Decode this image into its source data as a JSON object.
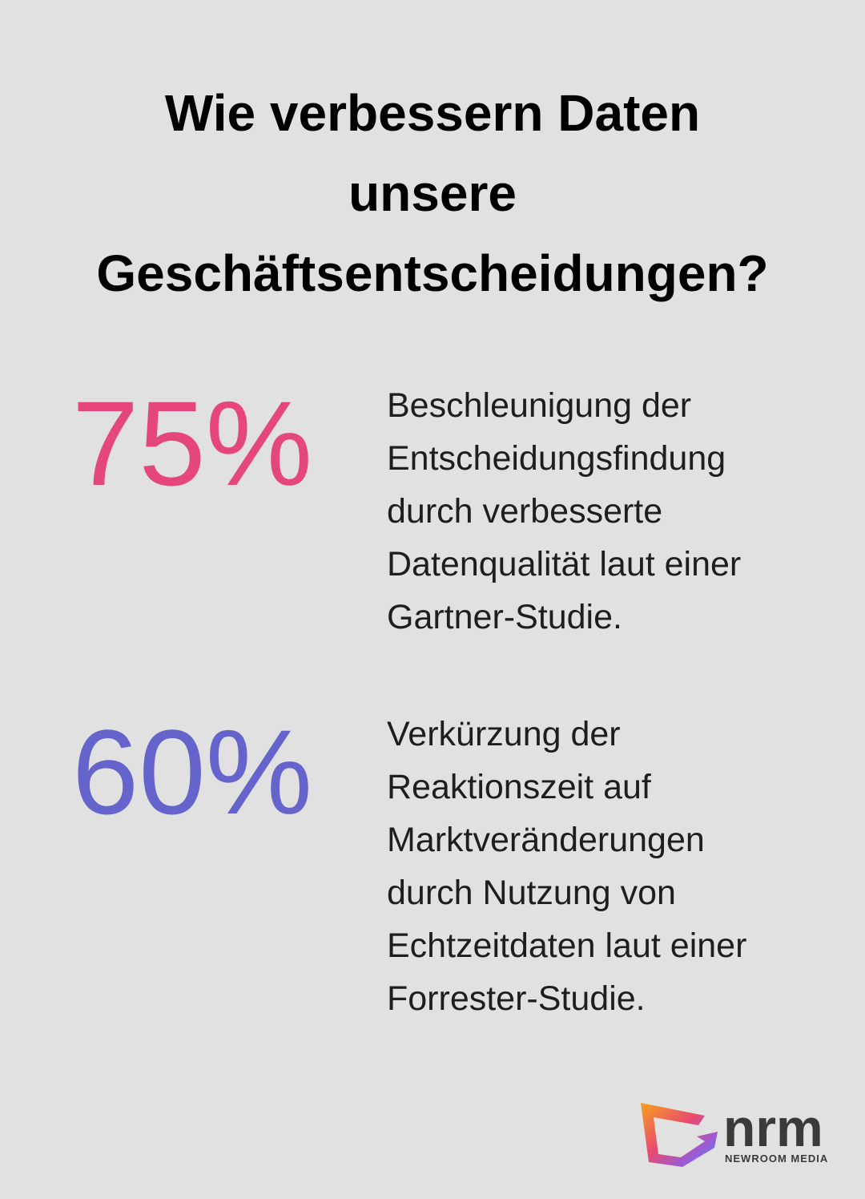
{
  "title": [
    "Wie verbessern Daten",
    "unsere",
    "Geschäftsentscheidungen?"
  ],
  "stats": [
    {
      "value": "75%",
      "color": "#e5477a",
      "description": [
        "Beschleunigung der",
        "Entscheidungsfindung",
        "durch verbesserte",
        "Datenqualität laut einer",
        "Gartner-Studie."
      ]
    },
    {
      "value": "60%",
      "color": "#6464cc",
      "description": [
        "Verkürzung der",
        "Reaktionszeit auf",
        "Marktveränderungen",
        "durch Nutzung von",
        "Echtzeitdaten laut einer",
        "Forrester-Studie."
      ]
    }
  ],
  "logo": {
    "name": "nrm",
    "subtitle": "NEWROOM MEDIA"
  }
}
